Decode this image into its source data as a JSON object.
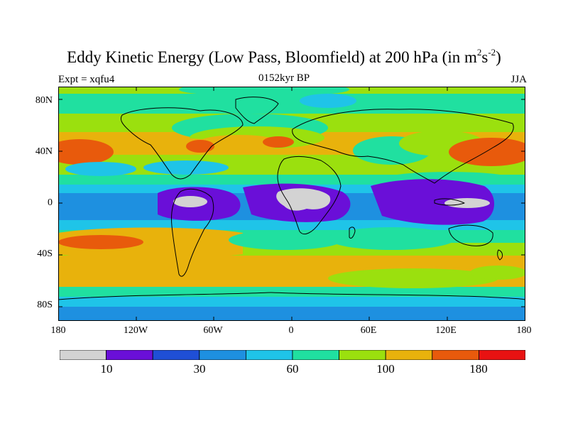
{
  "title": {
    "main": "Eddy Kinetic Energy (Low Pass, Bloomfield) at 200 hPa (in m",
    "sup1": "2",
    "mid": "s",
    "sup2": "-2",
    "end": ")"
  },
  "subtitle": "0152kyr BP",
  "left_label": "Expt = xqfu4",
  "right_label": "JJA",
  "y_axis": {
    "ticks": [
      "80N",
      "40N",
      "0",
      "40S",
      "80S"
    ]
  },
  "x_axis": {
    "ticks": [
      "180",
      "120W",
      "60W",
      "0",
      "60E",
      "120E",
      "180"
    ]
  },
  "colorbar": {
    "colors": [
      "#d3d3d3",
      "#6a0fd8",
      "#1f4fd6",
      "#1e90e0",
      "#1fc4e8",
      "#20e0a0",
      "#9be00e",
      "#e8b20c",
      "#e85a0c",
      "#e81212"
    ],
    "labels": [
      "10",
      "30",
      "60",
      "100",
      "180"
    ]
  },
  "map": {
    "projection": "cylindrical-equidistant",
    "lat_range": [
      -90,
      90
    ],
    "lon_range": [
      -180,
      180
    ],
    "field": "eddy kinetic energy contour fill"
  }
}
